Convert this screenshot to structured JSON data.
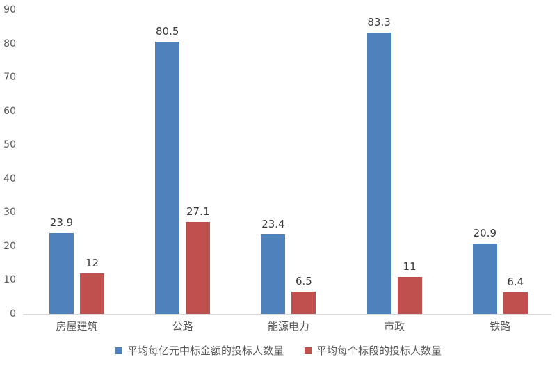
{
  "chart_data": {
    "type": "bar",
    "title": "",
    "categories": [
      "房屋建筑",
      "公路",
      "能源电力",
      "市政",
      "铁路"
    ],
    "series": [
      {
        "name": "平均每亿元中标金额的投标人数量",
        "color": "#4F81BD",
        "values": [
          23.9,
          80.5,
          23.4,
          83.3,
          20.9
        ]
      },
      {
        "name": "平均每个标段的投标人数量",
        "color": "#C0504D",
        "values": [
          12,
          27.1,
          6.5,
          11,
          6.4
        ]
      }
    ],
    "xlabel": "",
    "ylabel": "",
    "ylim": [
      0,
      90
    ],
    "ytick_interval": 10,
    "yticks": [
      "0",
      "10",
      "20",
      "30",
      "40",
      "50",
      "60",
      "70",
      "80",
      "90"
    ],
    "grid": false,
    "data_labels_shown": true,
    "legend_position": "bottom"
  },
  "colors": {
    "series1": "#4F81BD",
    "series2": "#C0504D",
    "axis_line": "#D9D9D9",
    "axis_text": "#595959",
    "data_label_text": "#3D3D3D",
    "background": "#FFFFFF"
  }
}
